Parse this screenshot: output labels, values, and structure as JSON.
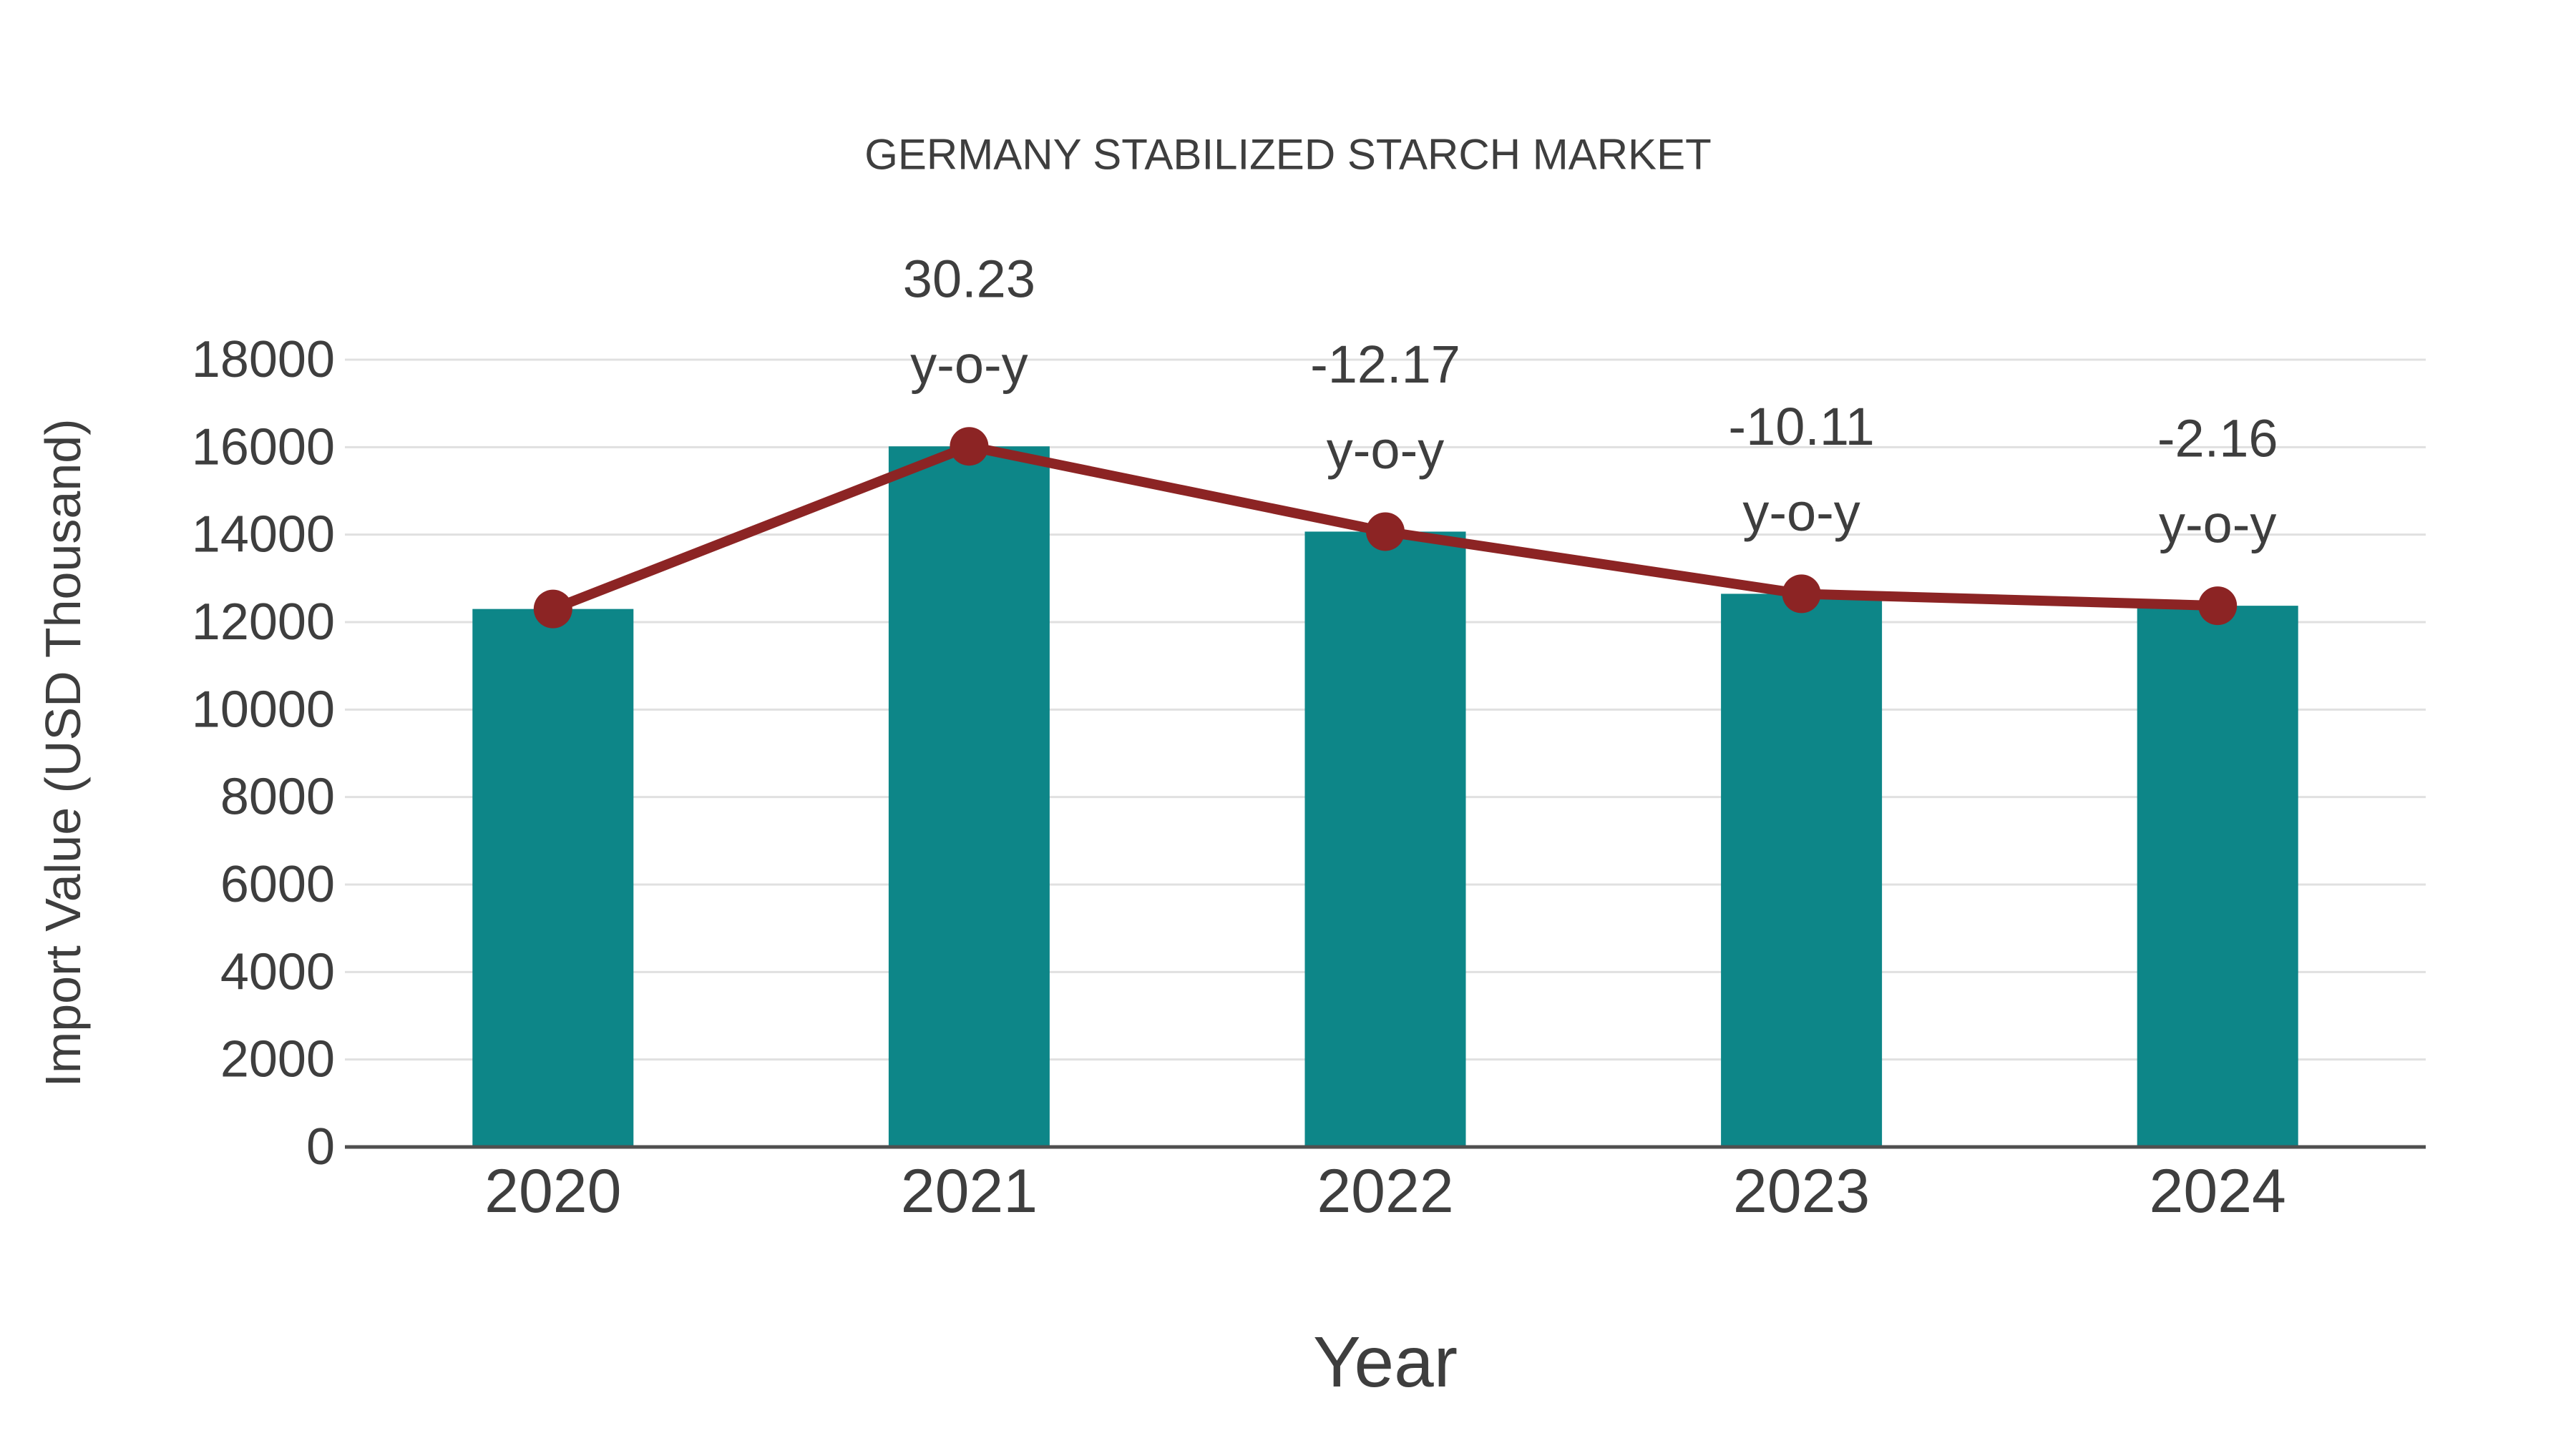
{
  "page": {
    "background": "#ffffff"
  },
  "chart_data": {
    "type": "bar",
    "title": "GERMANY STABILIZED STARCH MARKET",
    "xlabel": "Year",
    "ylabel": "Import Value (USD Thousand)",
    "categories": [
      "2020",
      "2021",
      "2022",
      "2023",
      "2024"
    ],
    "series": [
      {
        "name": "import-value-bars",
        "type": "bar",
        "values": [
          12300,
          16018,
          14069,
          12647,
          12374
        ]
      },
      {
        "name": "import-value-trend-line",
        "type": "line",
        "values": [
          12300,
          16018,
          14069,
          12647,
          12374
        ]
      }
    ],
    "annotations": [
      {
        "category": "2021",
        "line1": "30.23",
        "line2": "y-o-y"
      },
      {
        "category": "2022",
        "line1": "-12.17",
        "line2": "y-o-y"
      },
      {
        "category": "2023",
        "line1": "-10.11",
        "line2": "y-o-y"
      },
      {
        "category": "2024",
        "line1": "-2.16",
        "line2": "y-o-y"
      }
    ],
    "ylim": [
      0,
      18000
    ],
    "yticks": [
      0,
      2000,
      4000,
      6000,
      8000,
      10000,
      12000,
      14000,
      16000,
      18000
    ],
    "grid": true,
    "legend": "none",
    "colors": {
      "bar": "#0d8688",
      "line": "#8c2424",
      "marker": "#8c2424",
      "text": "#3e3e3e",
      "grid": "#e0e0e0",
      "axis": "#4f4f4f",
      "background": "#ffffff"
    }
  }
}
